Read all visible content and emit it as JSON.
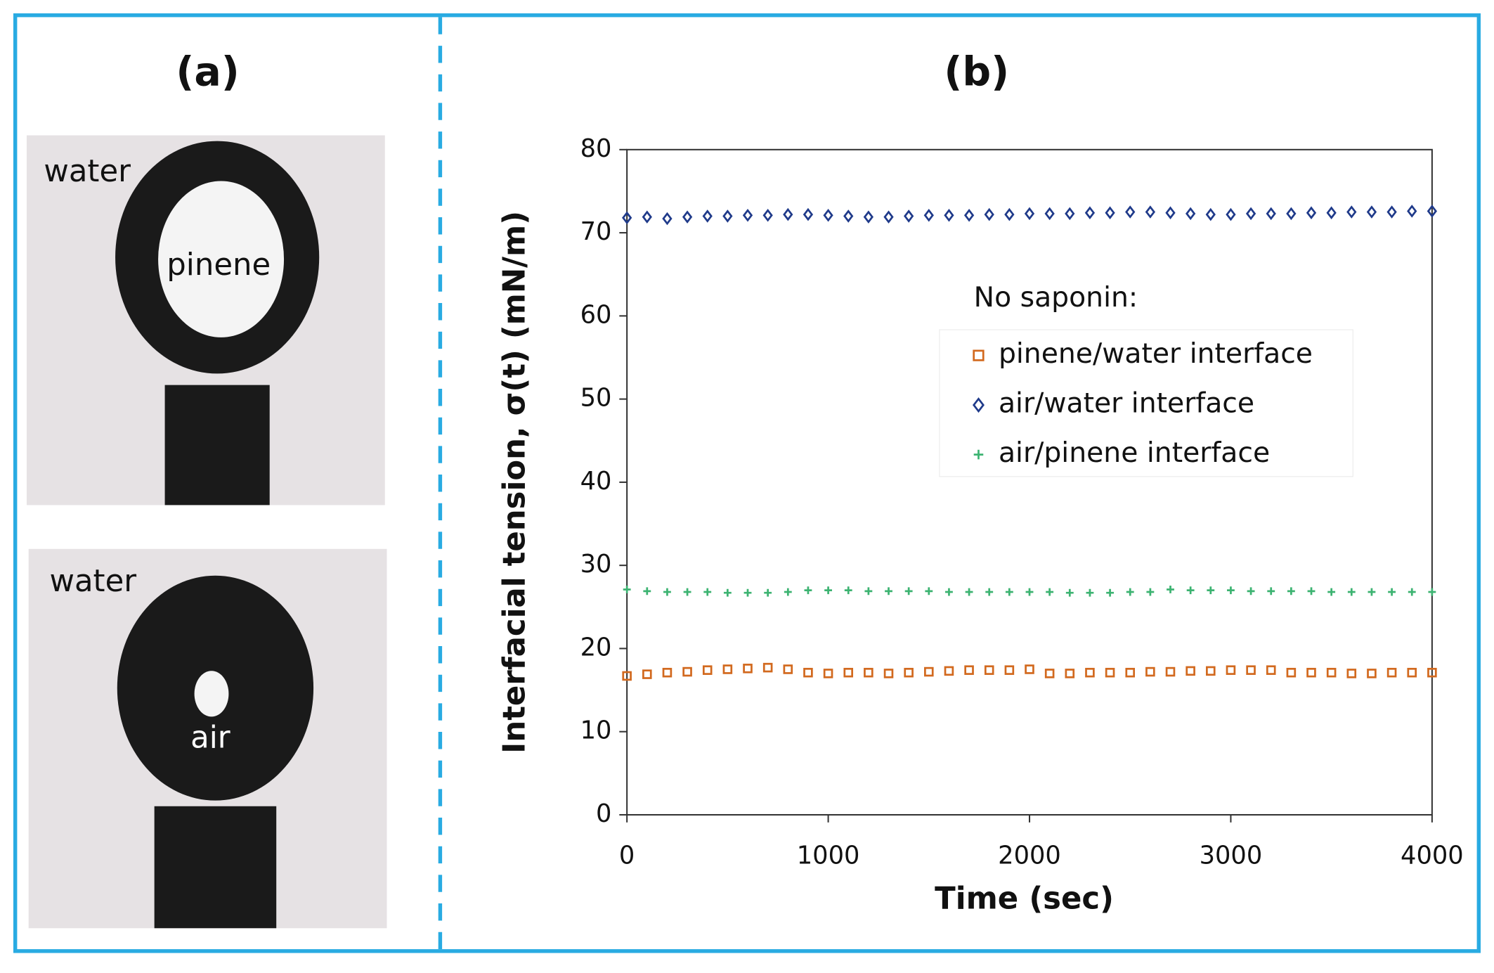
{
  "panel_a": {
    "label": "(a)",
    "images": [
      {
        "outer": "water",
        "inner": "pinene"
      },
      {
        "outer": "water",
        "inner": "air"
      }
    ]
  },
  "chart_data": {
    "type": "scatter",
    "panel_label": "(b)",
    "x_label": "Time (sec)",
    "y_label": "Interfacial tension, σ(t) (mN/m)",
    "legend_title": "No saponin:",
    "x": [
      0,
      100,
      200,
      300,
      400,
      500,
      600,
      700,
      800,
      900,
      1000,
      1100,
      1200,
      1300,
      1400,
      1500,
      1600,
      1700,
      1800,
      1900,
      2000,
      2100,
      2200,
      2300,
      2400,
      2500,
      2600,
      2700,
      2800,
      2900,
      3000,
      3100,
      3200,
      3300,
      3400,
      3500,
      3600,
      3700,
      3800,
      3900,
      4000
    ],
    "series": [
      {
        "name": "pinene/water interface",
        "color": "#d2691e",
        "marker": "square",
        "values": [
          16.7,
          16.9,
          17.1,
          17.2,
          17.4,
          17.5,
          17.6,
          17.7,
          17.5,
          17.1,
          17.0,
          17.1,
          17.1,
          17.0,
          17.1,
          17.2,
          17.3,
          17.4,
          17.4,
          17.4,
          17.5,
          17.0,
          17.0,
          17.1,
          17.1,
          17.1,
          17.2,
          17.2,
          17.3,
          17.3,
          17.4,
          17.4,
          17.4,
          17.1,
          17.1,
          17.1,
          17.0,
          17.0,
          17.1,
          17.1,
          17.1
        ]
      },
      {
        "name": "air/water interface",
        "color": "#1f3a8a",
        "marker": "diamond",
        "values": [
          71.8,
          71.9,
          71.7,
          71.9,
          72.0,
          72.0,
          72.1,
          72.1,
          72.2,
          72.2,
          72.1,
          72.0,
          71.9,
          71.9,
          72.0,
          72.1,
          72.1,
          72.1,
          72.2,
          72.2,
          72.3,
          72.3,
          72.3,
          72.4,
          72.4,
          72.5,
          72.5,
          72.4,
          72.3,
          72.2,
          72.2,
          72.3,
          72.3,
          72.3,
          72.4,
          72.4,
          72.5,
          72.5,
          72.5,
          72.6,
          72.6
        ]
      },
      {
        "name": "air/pinene interface",
        "color": "#3cb371",
        "marker": "plus",
        "values": [
          27.1,
          26.9,
          26.8,
          26.8,
          26.8,
          26.7,
          26.7,
          26.7,
          26.8,
          27.0,
          27.0,
          27.0,
          26.9,
          26.9,
          26.9,
          26.9,
          26.8,
          26.8,
          26.8,
          26.8,
          26.8,
          26.8,
          26.7,
          26.7,
          26.7,
          26.8,
          26.8,
          27.1,
          27.0,
          27.0,
          27.0,
          26.9,
          26.9,
          26.9,
          26.9,
          26.8,
          26.8,
          26.8,
          26.8,
          26.8,
          26.8
        ]
      }
    ],
    "xlim": [
      0,
      4000
    ],
    "xticks": [
      0,
      1000,
      2000,
      3000,
      4000
    ],
    "ylim": [
      0,
      80
    ],
    "yticks": [
      0,
      10,
      20,
      30,
      40,
      50,
      60,
      70,
      80
    ]
  }
}
